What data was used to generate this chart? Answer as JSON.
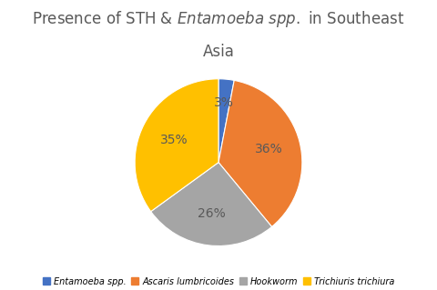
{
  "labels": [
    "Entamoeba spp.",
    "Ascaris lumbricoides",
    "Hookworm",
    "Trichiuris trichiura"
  ],
  "values": [
    3,
    36,
    26,
    35
  ],
  "colors": [
    "#4472C4",
    "#ED7D31",
    "#A5A5A5",
    "#FFC000"
  ],
  "startangle": 90,
  "pct_labels": [
    "3%",
    "36%",
    "26%",
    "35%"
  ],
  "pct_radii": [
    0.72,
    0.62,
    0.62,
    0.6
  ],
  "background_color": "#ffffff",
  "title_fontsize": 12,
  "legend_fontsize": 7,
  "pct_fontsize": 10,
  "text_color": "#595959"
}
